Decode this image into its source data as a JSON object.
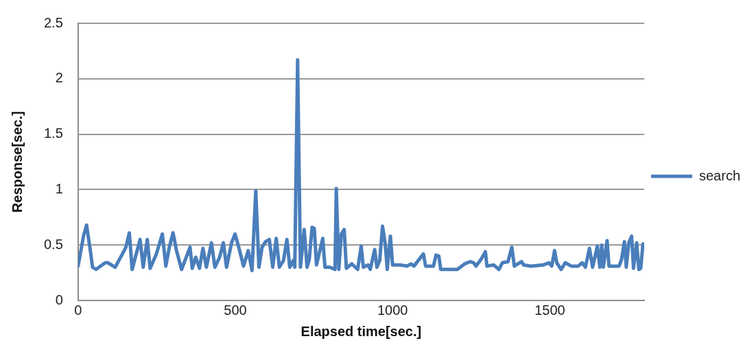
{
  "chart_data": {
    "type": "line",
    "xlabel": "Elapsed time[sec.]",
    "ylabel": "Response[sec.]",
    "xlim": [
      0,
      1800
    ],
    "xticks": [
      0,
      500,
      1000,
      1500
    ],
    "ylim": [
      0,
      2.5
    ],
    "yticks": [
      0,
      0.5,
      1,
      1.5,
      2,
      2.5
    ],
    "grid": "y",
    "legend": "right",
    "marker": "none",
    "line_style": "solid",
    "series": [
      {
        "name": "search",
        "color": "#4a7ebb",
        "x": [
          0,
          18,
          27,
          39,
          46,
          57,
          86,
          95,
          118,
          141,
          152,
          163,
          172,
          197,
          207,
          220,
          229,
          249,
          268,
          279,
          290,
          302,
          313,
          329,
          356,
          363,
          374,
          386,
          397,
          408,
          424,
          435,
          450,
          462,
          472,
          488,
          499,
          510,
          526,
          541,
          553,
          565,
          575,
          585,
          596,
          608,
          619,
          630,
          640,
          653,
          664,
          673,
          684,
          689,
          698,
          707,
          719,
          728,
          735,
          744,
          751,
          758,
          778,
          785,
          800,
          817,
          821,
          829,
          837,
          846,
          853,
          870,
          889,
          900,
          907,
          922,
          929,
          943,
          950,
          959,
          968,
          977,
          983,
          993,
          1000,
          1025,
          1045,
          1059,
          1068,
          1098,
          1105,
          1130,
          1138,
          1147,
          1153,
          1181,
          1206,
          1229,
          1247,
          1258,
          1265,
          1281,
          1295,
          1300,
          1322,
          1338,
          1349,
          1367,
          1379,
          1387,
          1410,
          1417,
          1440,
          1478,
          1497,
          1506,
          1515,
          1522,
          1536,
          1549,
          1568,
          1590,
          1603,
          1613,
          1626,
          1636,
          1651,
          1659,
          1665,
          1670,
          1682,
          1688,
          1720,
          1728,
          1737,
          1743,
          1751,
          1760,
          1766,
          1776,
          1783,
          1789,
          1796
        ],
        "values": [
          0.31,
          0.59,
          0.68,
          0.45,
          0.3,
          0.28,
          0.34,
          0.34,
          0.3,
          0.42,
          0.48,
          0.61,
          0.28,
          0.55,
          0.3,
          0.55,
          0.29,
          0.42,
          0.6,
          0.31,
          0.48,
          0.61,
          0.45,
          0.28,
          0.48,
          0.29,
          0.39,
          0.29,
          0.47,
          0.3,
          0.52,
          0.3,
          0.39,
          0.52,
          0.3,
          0.52,
          0.6,
          0.49,
          0.31,
          0.45,
          0.27,
          0.99,
          0.3,
          0.48,
          0.53,
          0.55,
          0.3,
          0.56,
          0.3,
          0.36,
          0.55,
          0.3,
          0.36,
          0.3,
          2.17,
          0.3,
          0.64,
          0.3,
          0.37,
          0.66,
          0.65,
          0.32,
          0.56,
          0.3,
          0.3,
          0.28,
          1.01,
          0.28,
          0.6,
          0.64,
          0.29,
          0.33,
          0.28,
          0.49,
          0.3,
          0.32,
          0.28,
          0.46,
          0.3,
          0.36,
          0.67,
          0.5,
          0.28,
          0.58,
          0.32,
          0.32,
          0.31,
          0.33,
          0.31,
          0.42,
          0.31,
          0.31,
          0.41,
          0.4,
          0.28,
          0.28,
          0.28,
          0.33,
          0.35,
          0.34,
          0.31,
          0.37,
          0.44,
          0.31,
          0.32,
          0.28,
          0.34,
          0.35,
          0.48,
          0.31,
          0.35,
          0.32,
          0.31,
          0.32,
          0.34,
          0.31,
          0.45,
          0.34,
          0.28,
          0.34,
          0.31,
          0.31,
          0.34,
          0.3,
          0.47,
          0.3,
          0.49,
          0.3,
          0.5,
          0.3,
          0.54,
          0.31,
          0.31,
          0.37,
          0.53,
          0.3,
          0.52,
          0.58,
          0.29,
          0.52,
          0.28,
          0.29,
          0.51
        ]
      }
    ]
  }
}
